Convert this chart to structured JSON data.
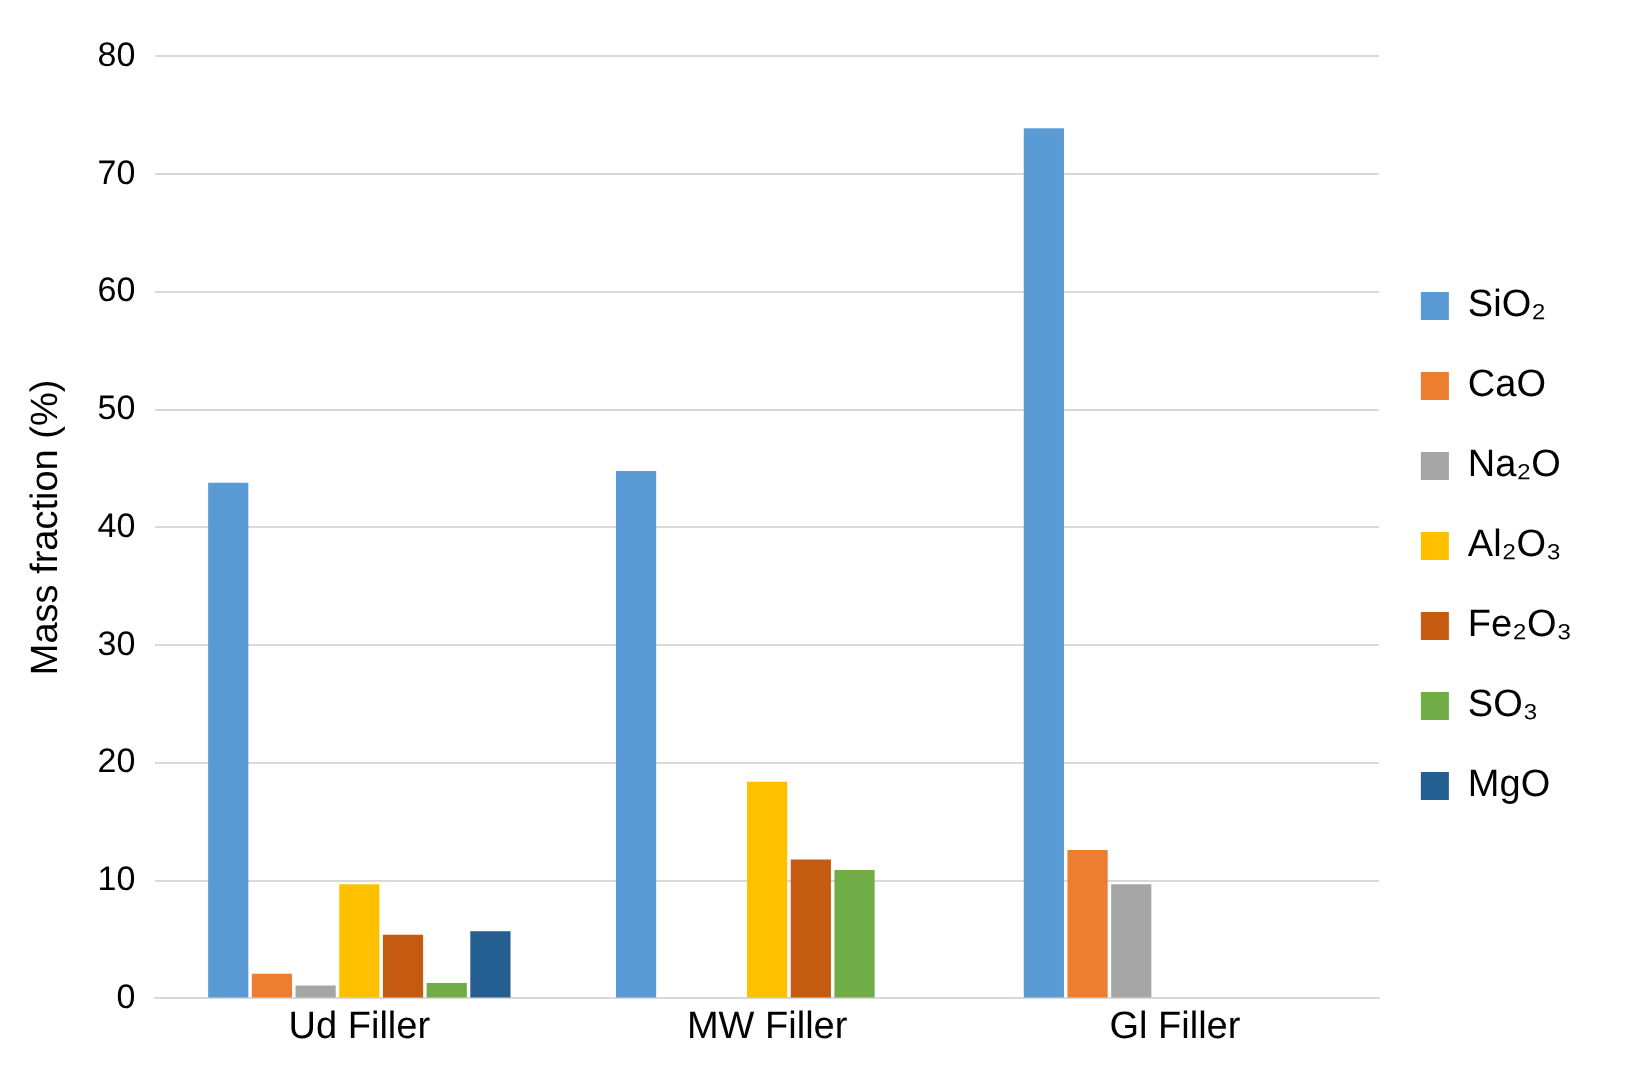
{
  "chart_data": {
    "type": "bar",
    "ylabel": "Mass fraction (%)",
    "categories": [
      "Ud Filler",
      "MW Filler",
      "Gl Filler"
    ],
    "series": [
      {
        "name": "SiO₂",
        "color": "#5b9bd5",
        "values": [
          43.8,
          44.8,
          73.9
        ]
      },
      {
        "name": "CaO",
        "color": "#ed7d31",
        "values": [
          2.1,
          null,
          12.6
        ]
      },
      {
        "name": "Na₂O",
        "color": "#a5a5a5",
        "values": [
          1.1,
          null,
          9.7
        ]
      },
      {
        "name": "Al₂O₃",
        "color": "#ffc000",
        "values": [
          9.7,
          18.4,
          null
        ]
      },
      {
        "name": "Fe₂O₃",
        "color": "#c55a11",
        "values": [
          5.4,
          11.8,
          null
        ]
      },
      {
        "name": "SO₃",
        "color": "#70ad47",
        "values": [
          1.3,
          10.9,
          null
        ]
      },
      {
        "name": "MgO",
        "color": "#255e91",
        "values": [
          5.7,
          null,
          null
        ]
      }
    ],
    "ylim": [
      0,
      80
    ],
    "yticks": [
      0,
      10,
      20,
      30,
      40,
      50,
      60,
      70,
      80
    ],
    "grid": "y",
    "legend": "right"
  }
}
